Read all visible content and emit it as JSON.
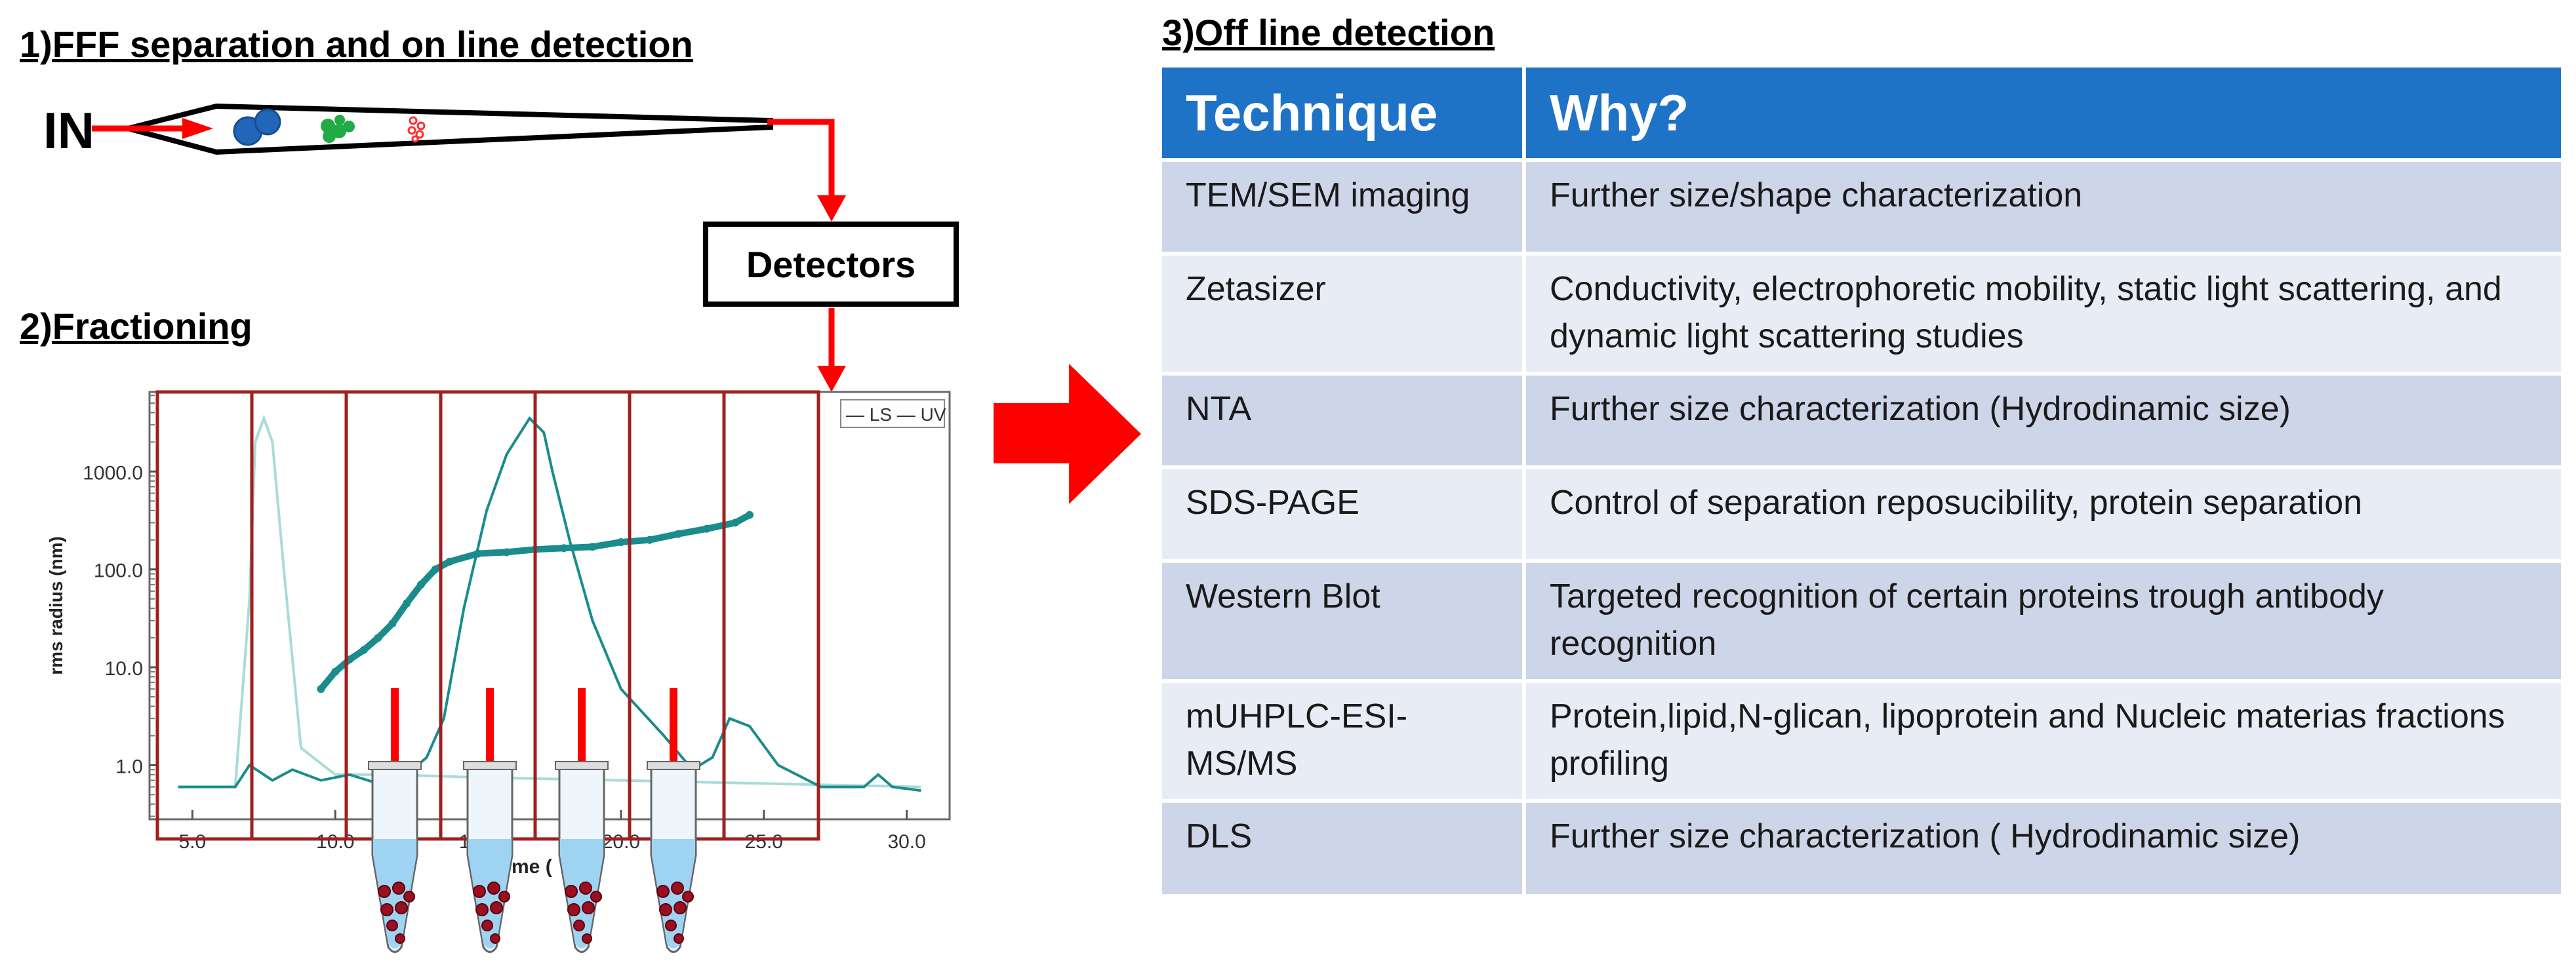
{
  "section1": {
    "title": "1)FFF separation and  on  line detection"
  },
  "inlet": {
    "label": "IN"
  },
  "detectors": {
    "label": "Detectors"
  },
  "section2": {
    "title": "2)Fractioning"
  },
  "section3": {
    "title": "3)Off line detection"
  },
  "colors": {
    "arrow": "#ff0000",
    "table_header": "#1f73c7",
    "row_odd": "#cdd6e9",
    "row_even": "#e8ecf5",
    "trace_teal": "#1a8c8c",
    "trace_light": "#a8dcd8",
    "fraction_box": "#a02020"
  },
  "icons": [
    "flow-channel-icon",
    "particle-icon",
    "arrow-icon",
    "test-tube-icon"
  ],
  "chart_data": {
    "type": "line",
    "x_ticks": [
      "5.0",
      "10.0",
      "15.0",
      "20.0",
      "25.0",
      "30.0"
    ],
    "y_ticks": [
      "1000.0",
      "100.0",
      "10.0",
      "1.0"
    ],
    "y_scale": "log",
    "ylabel": "rms radius (nm)",
    "xlabel_visible": "me (",
    "legend": [
      "LS",
      "UV"
    ],
    "legend_position": "top-right",
    "series": [
      {
        "name": "LS",
        "x": [
          4.5,
          6.5,
          7.0,
          7.8,
          8.5,
          9.5,
          10.5,
          11.5,
          12.5,
          13.2,
          13.8,
          14.5,
          15.3,
          16.0,
          16.8,
          17.3,
          17.6,
          18.2,
          19.0,
          20.0,
          21.5,
          22.5,
          23.2,
          23.8,
          24.5,
          25.5,
          27.0,
          28.5,
          29.0,
          29.5,
          30.5
        ],
        "y": [
          0.6,
          0.6,
          1.0,
          0.7,
          0.9,
          0.7,
          0.8,
          0.65,
          0.8,
          1.2,
          3.0,
          40,
          400,
          1500,
          3500,
          2500,
          1000,
          200,
          30,
          6,
          2.0,
          0.9,
          1.2,
          3.0,
          2.5,
          1.0,
          0.6,
          0.6,
          0.8,
          0.6,
          0.55
        ]
      },
      {
        "name": "UV",
        "x": [
          4.5,
          6.5,
          7.0,
          7.2,
          7.5,
          7.8,
          8.2,
          8.8,
          10.0,
          12.0,
          15.0,
          20.0,
          25.0,
          30.5
        ],
        "y": [
          0.6,
          0.6,
          50,
          2000,
          3500,
          2000,
          100,
          1.5,
          0.8,
          0.8,
          0.75,
          0.7,
          0.65,
          0.6
        ]
      },
      {
        "name": "rms radius",
        "x": [
          9.5,
          10.0,
          10.5,
          11.0,
          11.5,
          12.0,
          12.5,
          13.0,
          13.5,
          14.0,
          15.0,
          16.0,
          17.0,
          18.0,
          19.0,
          20.0,
          21.0,
          22.0,
          23.0,
          24.0,
          24.5
        ],
        "y": [
          6,
          9,
          12,
          15,
          20,
          28,
          45,
          70,
          100,
          120,
          145,
          150,
          160,
          165,
          170,
          190,
          200,
          230,
          260,
          300,
          360
        ]
      }
    ]
  },
  "fractions": {
    "count": 7,
    "tubes": 4
  },
  "table": {
    "headers": [
      "Technique",
      "Why?"
    ],
    "rows": [
      {
        "technique": "TEM/SEM imaging",
        "why": "Further size/shape characterization"
      },
      {
        "technique": "Zetasizer",
        "why": "Conductivity, electrophoretic mobility, static light scattering, and dynamic light scattering studies"
      },
      {
        "technique": "NTA",
        "why": "Further size characterization (Hydrodinamic size)"
      },
      {
        "technique": "SDS-PAGE",
        "why": "Control of separation reposucibility, protein separation"
      },
      {
        "technique": "Western Blot",
        "why": "Targeted recognition of certain  proteins trough antibody recognition"
      },
      {
        "technique": "mUHPLC-ESI-MS/MS",
        "why": "Protein,lipid,N-glican, lipoprotein and Nucleic materias fractions profiling"
      },
      {
        "technique": "DLS",
        "why": "Further size characterization ( Hydrodinamic size)"
      }
    ]
  }
}
